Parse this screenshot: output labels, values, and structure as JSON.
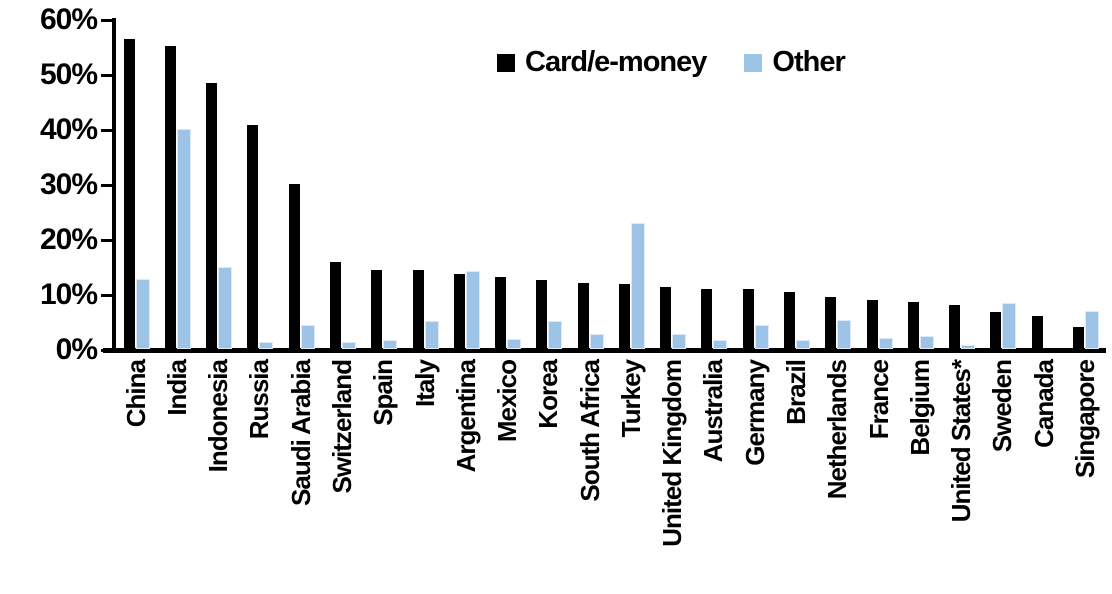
{
  "chart_data": {
    "type": "bar",
    "title": "",
    "xlabel": "",
    "ylabel": "",
    "ylim": [
      0,
      60
    ],
    "ytick_values": [
      0,
      10,
      20,
      30,
      40,
      50,
      60
    ],
    "ytick_labels": [
      "0%",
      "10%",
      "20%",
      "30%",
      "40%",
      "50%",
      "60%"
    ],
    "grid": false,
    "legend_position": "top-center",
    "categories": [
      "China",
      "India",
      "Indonesia",
      "Russia",
      "Saudi Arabia",
      "Switzerland",
      "Spain",
      "Italy",
      "Argentina",
      "Mexico",
      "Korea",
      "South Africa",
      "Turkey",
      "United Kingdom",
      "Australia",
      "Germany",
      "Brazil",
      "Netherlands",
      "France",
      "Belgium",
      "United States*",
      "Sweden",
      "Canada",
      "Singapore"
    ],
    "series": [
      {
        "name": "Card/e-money",
        "color": "#000000",
        "values": [
          56.2,
          55.0,
          48.2,
          40.5,
          29.8,
          15.6,
          14.2,
          14.1,
          13.5,
          13.0,
          12.3,
          11.8,
          11.7,
          11.1,
          10.8,
          10.7,
          10.1,
          9.3,
          8.8,
          8.3,
          7.9,
          6.5,
          5.9,
          3.9
        ]
      },
      {
        "name": "Other",
        "color": "#9DC3E6",
        "values": [
          12.3,
          39.6,
          14.6,
          1.0,
          4.0,
          0.9,
          1.2,
          4.8,
          13.8,
          1.4,
          4.7,
          2.4,
          22.5,
          2.3,
          1.2,
          4.0,
          1.3,
          4.9,
          1.6,
          2.0,
          0.3,
          8.0,
          0.0,
          6.6
        ]
      }
    ]
  }
}
